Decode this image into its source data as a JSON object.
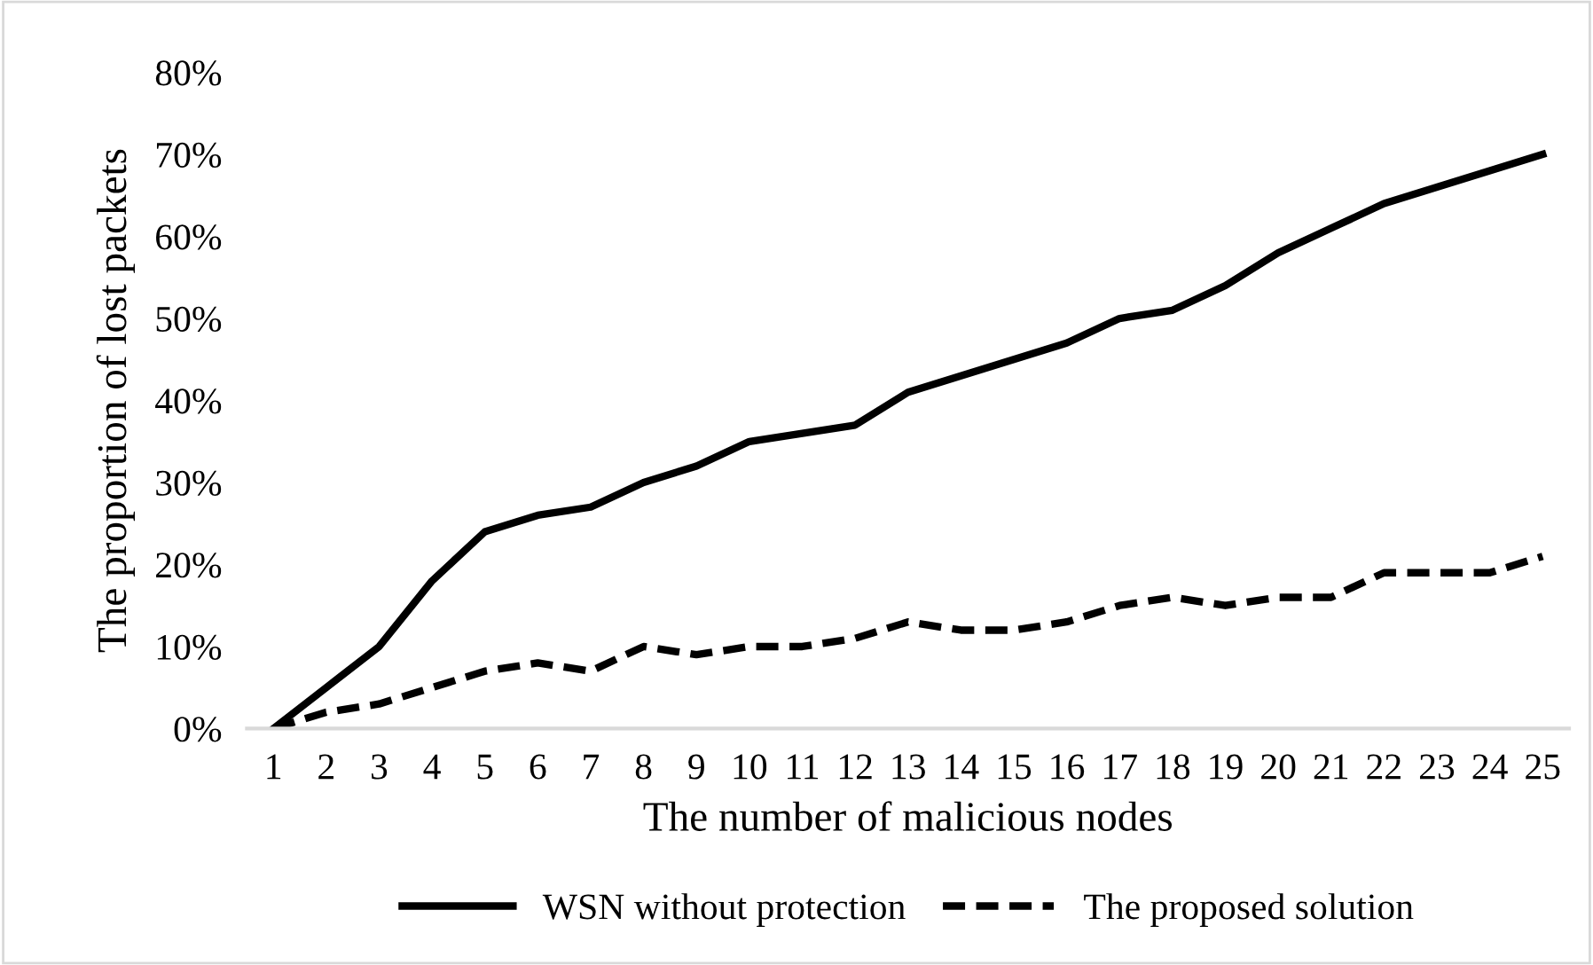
{
  "chart_data": {
    "type": "line",
    "xlabel": "The number of malicious nodes",
    "ylabel": "The proportion of lost packets",
    "categories": [
      "1",
      "2",
      "3",
      "4",
      "5",
      "6",
      "7",
      "8",
      "9",
      "10",
      "11",
      "12",
      "13",
      "14",
      "15",
      "16",
      "17",
      "18",
      "19",
      "20",
      "21",
      "22",
      "23",
      "24",
      "25"
    ],
    "series": [
      {
        "name": "WSN without protection",
        "color": "#000000",
        "line_style": "solid",
        "values": [
          0,
          5,
          10,
          18,
          24,
          26,
          27,
          30,
          32,
          35,
          36,
          37,
          41,
          43,
          45,
          47,
          50,
          51,
          54,
          58,
          61,
          64,
          66,
          68,
          70
        ]
      },
      {
        "name": "The proposed solution",
        "color": "#000000",
        "line_style": "dashed",
        "values": [
          0,
          2,
          3,
          5,
          7,
          8,
          7,
          10,
          9,
          10,
          10,
          11,
          13,
          12,
          12,
          13,
          15,
          16,
          15,
          16,
          16,
          19,
          19,
          19,
          21
        ]
      }
    ],
    "ylim": [
      0,
      80
    ],
    "yticks": [
      {
        "value": 0,
        "label": "0%"
      },
      {
        "value": 10,
        "label": "10%"
      },
      {
        "value": 20,
        "label": "20%"
      },
      {
        "value": 30,
        "label": "30%"
      },
      {
        "value": 40,
        "label": "40%"
      },
      {
        "value": 50,
        "label": "50%"
      },
      {
        "value": 60,
        "label": "60%"
      },
      {
        "value": 70,
        "label": "70%"
      },
      {
        "value": 80,
        "label": "80%"
      }
    ],
    "grid": false,
    "legend": "bottom",
    "marker": "none"
  }
}
